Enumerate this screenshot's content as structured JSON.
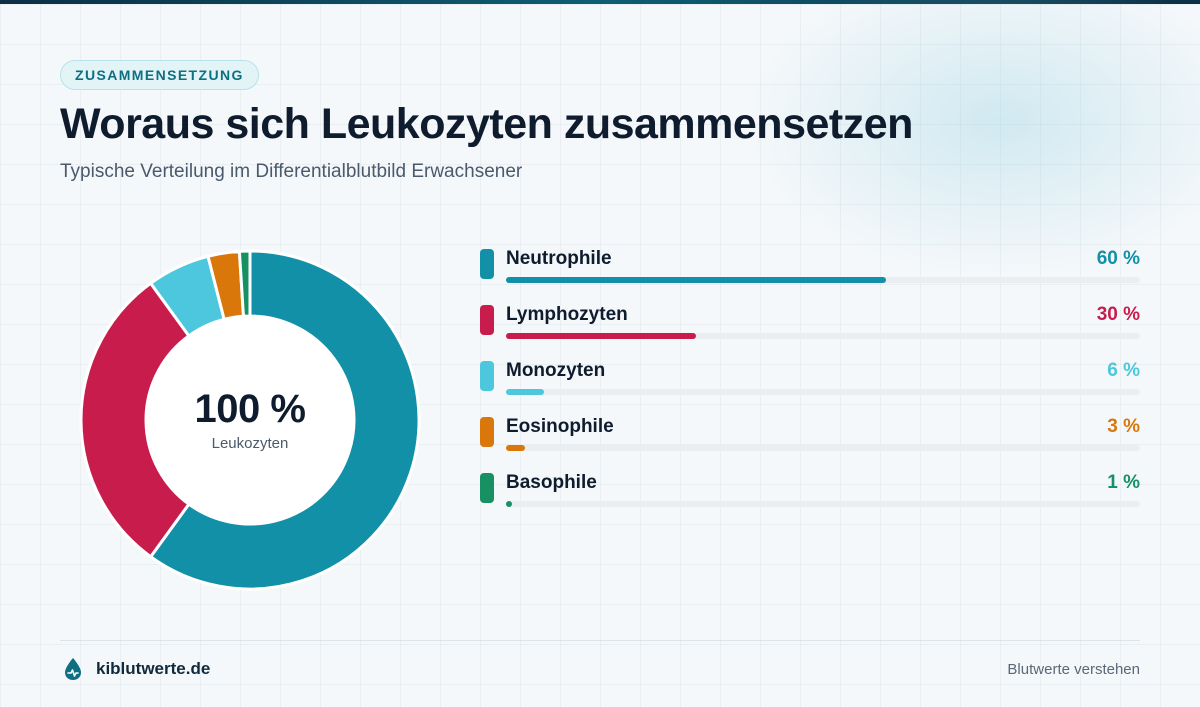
{
  "badge": "ZUSAMMENSETZUNG",
  "title": "Woraus sich Leukozyten zusammensetzen",
  "subtitle": "Typische Verteilung im Differentialblutbild Erwachsener",
  "center": {
    "value": "100 %",
    "label": "Leukozyten"
  },
  "footer": {
    "brand": "kiblutwerte.de",
    "tagline": "Blutwerte verstehen",
    "logo_icon": "blood-drop-icon"
  },
  "chart_data": {
    "type": "pie",
    "variant": "donut",
    "title": "Woraus sich Leukozyten zusammensetzen",
    "subtitle": "Typische Verteilung im Differentialblutbild Erwachsener",
    "unit": "%",
    "categories": [
      "Neutrophile",
      "Lymphozyten",
      "Monozyten",
      "Eosinophile",
      "Basophile"
    ],
    "values": [
      60,
      30,
      6,
      3,
      1
    ],
    "value_labels": [
      "60 %",
      "30 %",
      "6 %",
      "3 %",
      "1 %"
    ],
    "colors": [
      "#1190a8",
      "#c81d4c",
      "#4cc7de",
      "#d9770b",
      "#179063"
    ],
    "legend": "right"
  }
}
